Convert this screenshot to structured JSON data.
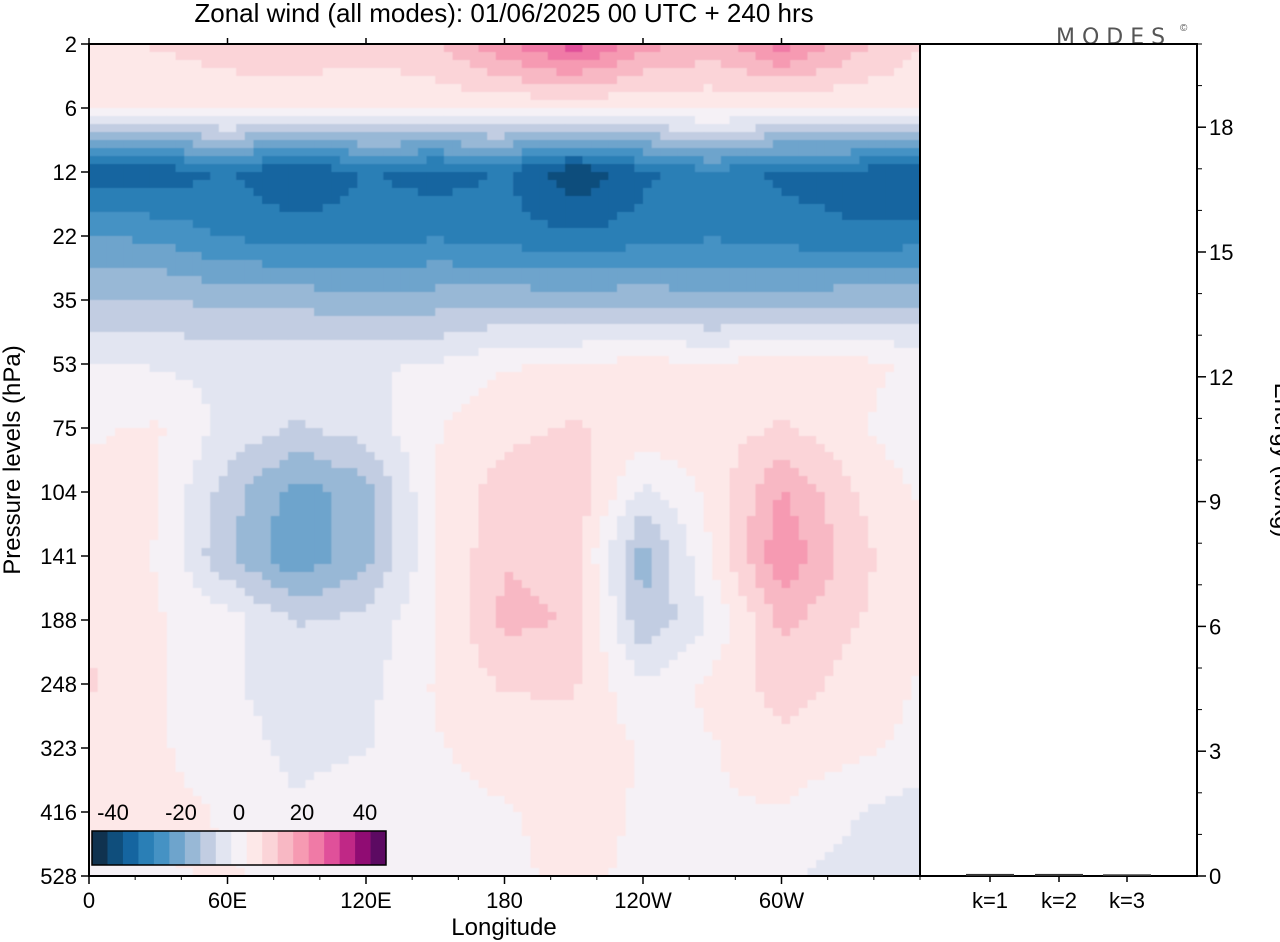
{
  "title": "Zonal wind (all modes):  01/06/2025  00 UTC  + 240 hrs",
  "logo": "MODES",
  "logo_mark": "©",
  "chart_data": [
    {
      "type": "heatmap",
      "variable": "Zonal wind (all modes)",
      "xlabel": "Longitude",
      "ylabel": "Pressure levels (hPa)",
      "x_ticks": [
        "0",
        "60E",
        "120E",
        "180",
        "120W",
        "60W"
      ],
      "x_range_deg": [
        0,
        360
      ],
      "y_ticks": [
        "2",
        "6",
        "12",
        "22",
        "35",
        "53",
        "75",
        "104",
        "141",
        "188",
        "248",
        "323",
        "416",
        "528"
      ],
      "colorbar": {
        "ticks": [
          "-40",
          "-20",
          "0",
          "20",
          "40"
        ],
        "levels": [
          -45,
          -40,
          -35,
          -30,
          -25,
          -20,
          -15,
          -10,
          -5,
          0,
          5,
          10,
          15,
          20,
          25,
          30,
          35,
          40,
          45
        ],
        "colors": [
          "#10324f",
          "#0f4e7c",
          "#1565a0",
          "#2a7fb6",
          "#4592c4",
          "#6ea4cc",
          "#98b8d6",
          "#c2cde2",
          "#e2e5f1",
          "#f5f1f6",
          "#fde8e8",
          "#fbd4d8",
          "#f8b8c4",
          "#f69ab2",
          "#f07aa6",
          "#e0509a",
          "#c02886",
          "#900c73",
          "#5c0a62"
        ]
      },
      "field": {
        "lon": [
          0,
          30,
          60,
          90,
          120,
          150,
          180,
          210,
          240,
          270,
          300,
          330,
          360
        ],
        "levels_hPa": [
          2,
          6,
          12,
          22,
          35,
          53,
          75,
          104,
          141,
          188,
          248,
          323,
          416,
          528
        ],
        "u_ms": [
          [
            5,
            8,
            10,
            12,
            10,
            12,
            22,
            30,
            20,
            15,
            25,
            15,
            8
          ],
          [
            3,
            3,
            4,
            3,
            2,
            4,
            3,
            4,
            3,
            4,
            3,
            3,
            3
          ],
          [
            -36,
            -36,
            -32,
            -38,
            -32,
            -35,
            -32,
            -42,
            -34,
            -28,
            -34,
            -34,
            -38
          ],
          [
            -22,
            -24,
            -28,
            -30,
            -30,
            -28,
            -30,
            -32,
            -30,
            -28,
            -30,
            -32,
            -30
          ],
          [
            -12,
            -12,
            -14,
            -14,
            -16,
            -15,
            -14,
            -15,
            -14,
            -16,
            -15,
            -14,
            -14
          ],
          [
            -2,
            -3,
            -4,
            -4,
            -3,
            -2,
            2,
            3,
            4,
            3,
            5,
            4,
            2
          ],
          [
            2,
            3,
            -4,
            -8,
            -5,
            2,
            6,
            8,
            6,
            5,
            8,
            4,
            -2
          ],
          [
            4,
            3,
            -10,
            -20,
            -15,
            3,
            10,
            12,
            -4,
            4,
            18,
            8,
            2
          ],
          [
            6,
            2,
            -12,
            -22,
            -14,
            2,
            12,
            10,
            -15,
            3,
            22,
            10,
            3
          ],
          [
            7,
            3,
            0,
            -8,
            -6,
            2,
            14,
            12,
            -12,
            -2,
            14,
            8,
            4
          ],
          [
            8,
            3,
            -2,
            -5,
            -4,
            3,
            8,
            8,
            -2,
            4,
            10,
            6,
            2
          ],
          [
            6,
            3,
            0,
            -4,
            -3,
            2,
            5,
            6,
            2,
            2,
            6,
            4,
            1
          ],
          [
            3,
            4,
            2,
            -2,
            2,
            1,
            2,
            4,
            2,
            2,
            2,
            -2,
            -5
          ],
          [
            2,
            2,
            3,
            1,
            2,
            1,
            2,
            3,
            2,
            1,
            -2,
            -4,
            -6
          ]
        ]
      }
    },
    {
      "type": "bar",
      "categories": [
        "k=1",
        "k=2",
        "k=3"
      ],
      "values": [
        0.05,
        0.05,
        0.04
      ],
      "ylabel": "Energy (kJ/kg)",
      "y_ticks": [
        "0",
        "3",
        "6",
        "9",
        "12",
        "15",
        "18"
      ],
      "ylim": [
        0,
        20
      ]
    }
  ]
}
